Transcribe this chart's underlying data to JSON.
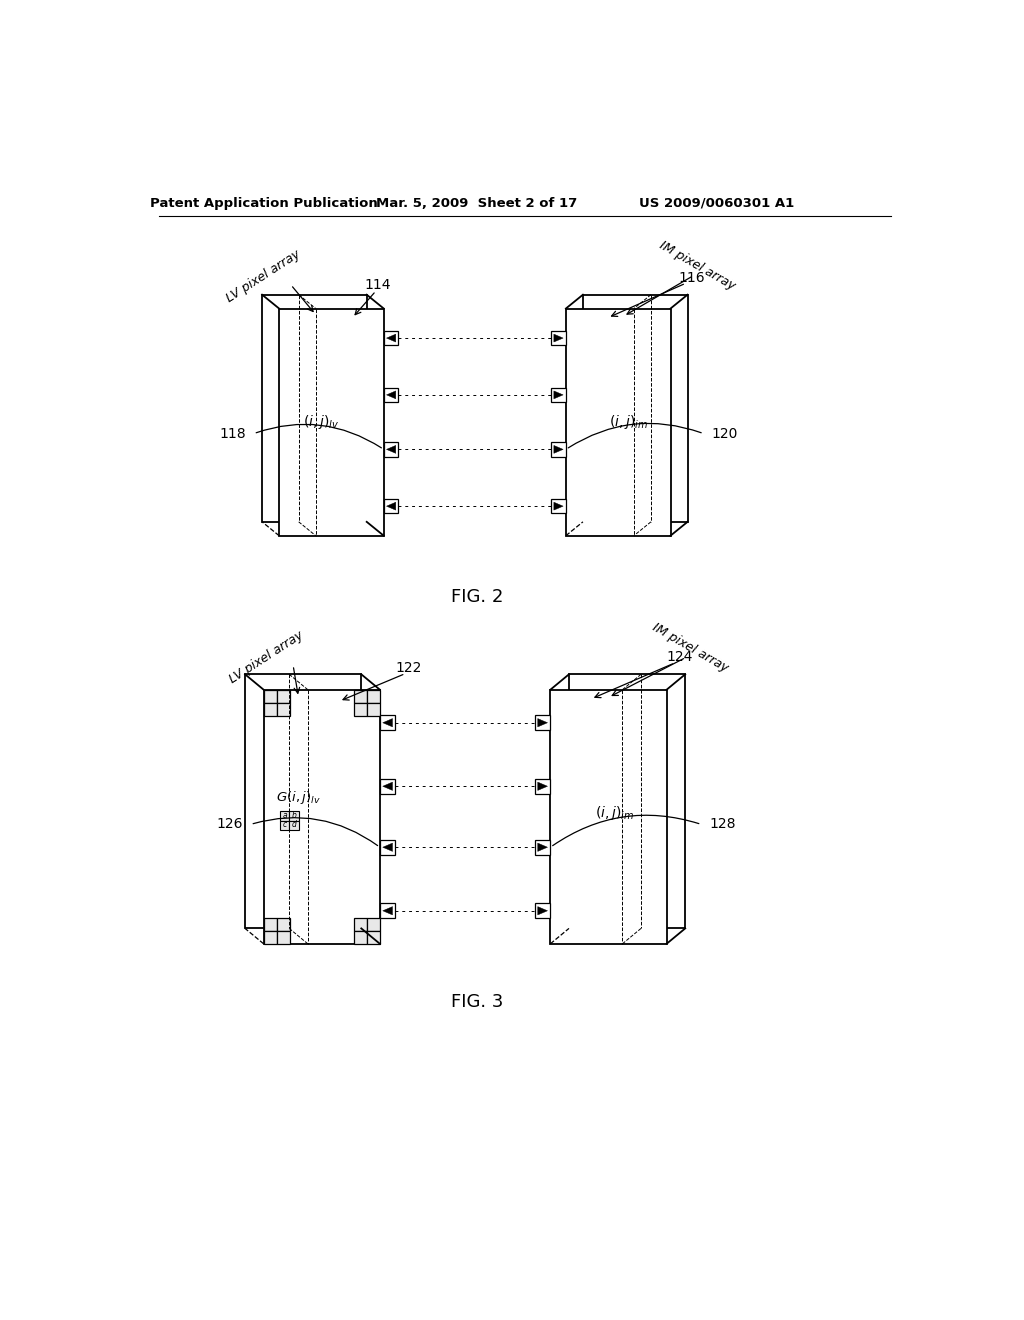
{
  "header_left": "Patent Application Publication",
  "header_mid": "Mar. 5, 2009  Sheet 2 of 17",
  "header_right": "US 2009/0060301 A1",
  "fig2_label": "FIG. 2",
  "fig3_label": "FIG. 3",
  "bg_color": "#ffffff",
  "lc": "#000000",
  "gray": "#aaaaaa",
  "light_gray": "#dddddd"
}
